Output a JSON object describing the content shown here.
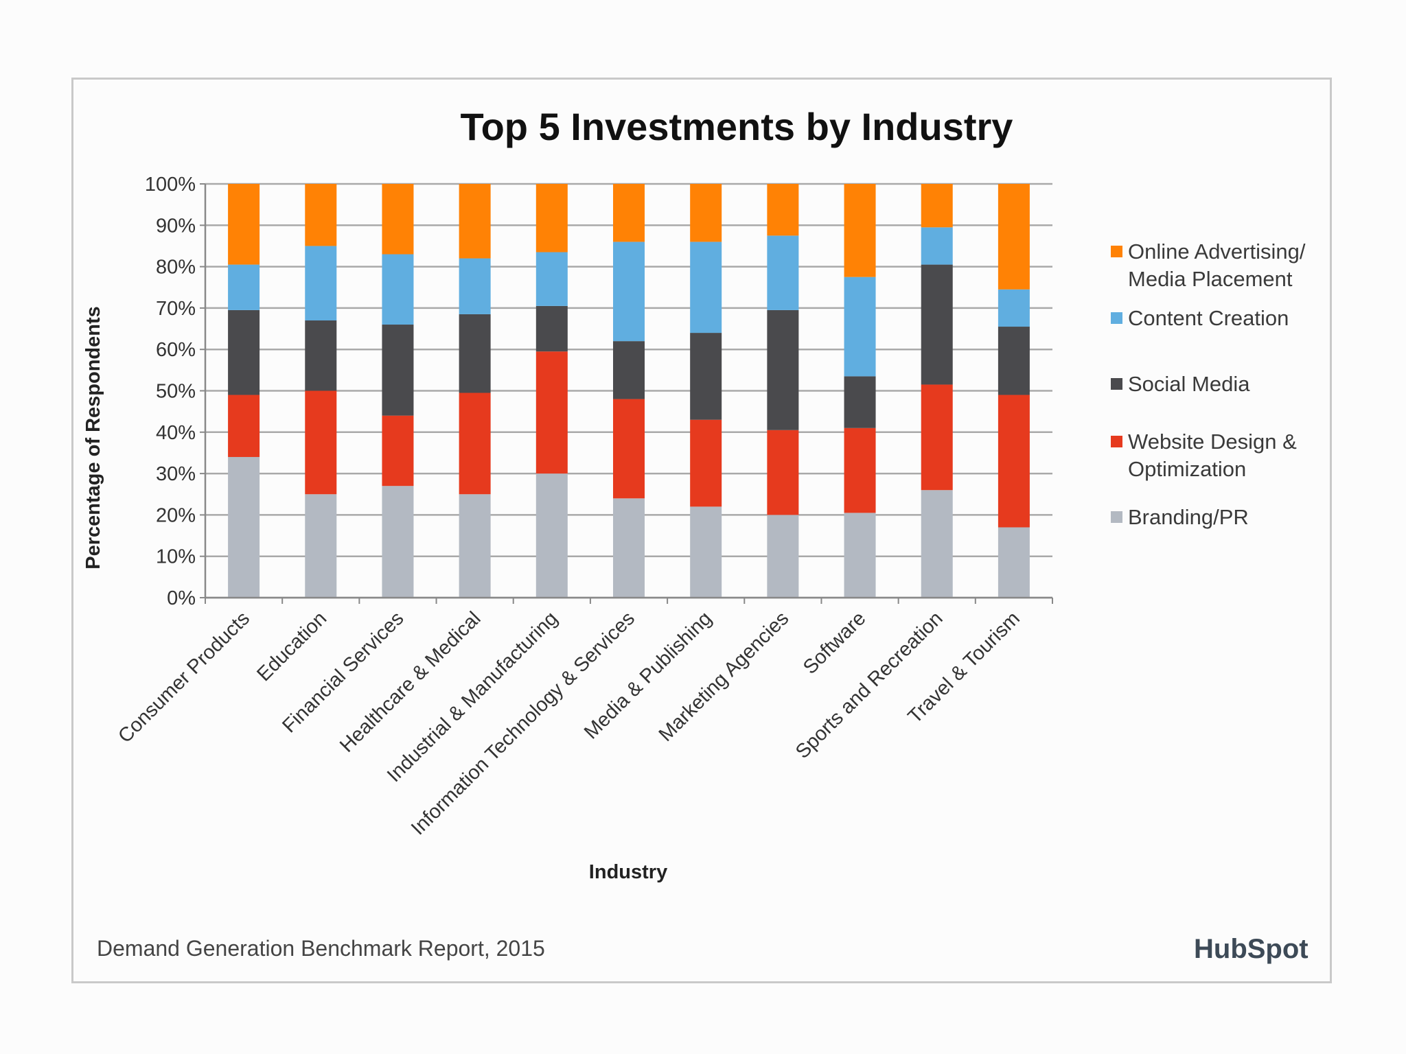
{
  "chart_data": {
    "type": "bar",
    "stacked": true,
    "title": "Top 5 Investments by Industry",
    "xlabel": "Industry",
    "ylabel": "Percentage of Respondents",
    "ylim": [
      0,
      100
    ],
    "yticks": [
      "0%",
      "10%",
      "20%",
      "30%",
      "40%",
      "50%",
      "60%",
      "70%",
      "80%",
      "90%",
      "100%"
    ],
    "categories": [
      "Consumer Products",
      "Education",
      "Financial Services",
      "Healthcare & Medical",
      "Industrial & Manufacturing",
      "Information Technology & Services",
      "Media & Publishing",
      "Marketing Agencies",
      "Software",
      "Sports and Recreation",
      "Travel & Tourism"
    ],
    "series": [
      {
        "name": "Branding/PR",
        "color": "#b3b9c2",
        "values": [
          34,
          25,
          27,
          25,
          30,
          24,
          22,
          20,
          20.5,
          26,
          17
        ]
      },
      {
        "name": "Website Design & Optimization",
        "color": "#e63a1e",
        "values": [
          15,
          25,
          17,
          24.5,
          29.5,
          24,
          21,
          20.5,
          20.5,
          25.5,
          32
        ]
      },
      {
        "name": "Social Media",
        "color": "#4a4a4d",
        "values": [
          20.5,
          17,
          22,
          19,
          11,
          14,
          21,
          29,
          12.5,
          29,
          16.5
        ]
      },
      {
        "name": "Content Creation",
        "color": "#60aee0",
        "values": [
          11,
          18,
          17,
          13.5,
          13,
          24,
          22,
          18,
          24,
          9,
          9
        ]
      },
      {
        "name": "Online Advertising/ Media Placement",
        "color": "#ff8205",
        "values": [
          19.5,
          15,
          17,
          18,
          16.5,
          14,
          14,
          12.5,
          22.5,
          10.5,
          25.5
        ]
      }
    ],
    "legend_order": [
      {
        "line1": "Online Advertising/",
        "line2": "Media Placement",
        "color": "#ff8205"
      },
      {
        "line1": "Content Creation",
        "line2": "",
        "color": "#60aee0"
      },
      {
        "line1": "Social Media",
        "line2": "",
        "color": "#4a4a4d"
      },
      {
        "line1": "Website Design &",
        "line2": "Optimization",
        "color": "#e63a1e"
      },
      {
        "line1": "Branding/PR",
        "line2": "",
        "color": "#b3b9c2"
      }
    ],
    "legend_position": "right",
    "grid": true
  },
  "footer": {
    "source": "Demand Generation Benchmark Report, 2015",
    "logo_text": "HubSpot"
  }
}
